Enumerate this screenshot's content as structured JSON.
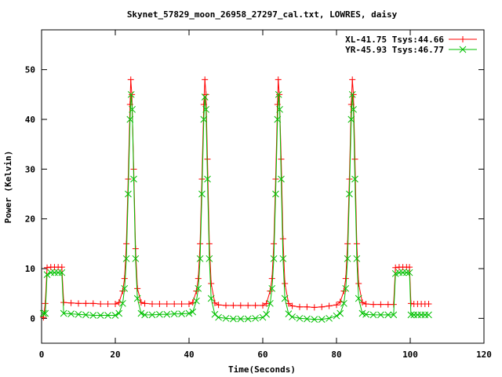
{
  "chart_data": {
    "type": "line",
    "title": "Skynet_57829_moon_26958_27297_cal.txt, LOWRES, daisy",
    "xlabel": "Time(Seconds)",
    "ylabel": "Power (Kelvin)",
    "xlim": [
      0,
      120
    ],
    "ylim": [
      -5,
      58
    ],
    "xticks": [
      0,
      20,
      40,
      60,
      80,
      100,
      120
    ],
    "yticks": [
      0,
      10,
      20,
      30,
      40,
      50
    ],
    "grid": false,
    "legend_position": "top-right",
    "series": [
      {
        "name": "XL-41.75 Tsys:44.66",
        "color": "#ff0000",
        "marker": "plus",
        "points": [
          [
            0.5,
            0.2
          ],
          [
            1.0,
            3.0
          ],
          [
            1.5,
            10.2
          ],
          [
            2.5,
            10.3
          ],
          [
            3.5,
            10.3
          ],
          [
            4.5,
            10.3
          ],
          [
            5.5,
            10.3
          ],
          [
            6.0,
            3.2
          ],
          [
            8,
            3.1
          ],
          [
            10,
            3.0
          ],
          [
            12,
            3.0
          ],
          [
            14,
            3.0
          ],
          [
            16,
            2.9
          ],
          [
            18,
            2.9
          ],
          [
            20,
            2.9
          ],
          [
            21,
            3.2
          ],
          [
            22,
            5.5
          ],
          [
            22.5,
            8
          ],
          [
            23,
            15
          ],
          [
            23.5,
            28
          ],
          [
            24,
            43
          ],
          [
            24.2,
            48
          ],
          [
            24.5,
            45
          ],
          [
            25,
            30
          ],
          [
            25.5,
            14
          ],
          [
            26,
            6
          ],
          [
            27,
            3.2
          ],
          [
            28,
            3.0
          ],
          [
            30,
            2.9
          ],
          [
            32,
            2.9
          ],
          [
            34,
            2.9
          ],
          [
            36,
            2.9
          ],
          [
            38,
            2.9
          ],
          [
            40,
            2.9
          ],
          [
            41,
            3.2
          ],
          [
            42,
            5.5
          ],
          [
            42.5,
            8
          ],
          [
            43,
            15
          ],
          [
            43.5,
            28
          ],
          [
            44,
            43
          ],
          [
            44.3,
            48
          ],
          [
            44.6,
            45
          ],
          [
            45,
            32
          ],
          [
            45.5,
            15
          ],
          [
            46,
            7
          ],
          [
            47,
            3.1
          ],
          [
            48,
            2.7
          ],
          [
            50,
            2.6
          ],
          [
            52,
            2.6
          ],
          [
            54,
            2.6
          ],
          [
            56,
            2.6
          ],
          [
            58,
            2.6
          ],
          [
            60,
            2.6
          ],
          [
            61,
            3.0
          ],
          [
            62,
            5.5
          ],
          [
            62.5,
            8
          ],
          [
            63,
            15
          ],
          [
            63.5,
            28
          ],
          [
            64,
            43
          ],
          [
            64.2,
            48
          ],
          [
            64.5,
            45
          ],
          [
            65,
            32
          ],
          [
            65.5,
            16
          ],
          [
            66,
            7
          ],
          [
            67,
            3.0
          ],
          [
            68,
            2.5
          ],
          [
            70,
            2.3
          ],
          [
            72,
            2.3
          ],
          [
            74,
            2.2
          ],
          [
            76,
            2.3
          ],
          [
            78,
            2.5
          ],
          [
            80,
            2.7
          ],
          [
            81,
            3.3
          ],
          [
            82,
            5.5
          ],
          [
            82.5,
            8
          ],
          [
            83,
            15
          ],
          [
            83.5,
            28
          ],
          [
            84,
            43
          ],
          [
            84.3,
            48
          ],
          [
            84.6,
            45
          ],
          [
            85,
            32
          ],
          [
            85.5,
            15
          ],
          [
            86,
            7
          ],
          [
            87,
            3.2
          ],
          [
            88,
            2.9
          ],
          [
            90,
            2.8
          ],
          [
            92,
            2.8
          ],
          [
            94,
            2.8
          ],
          [
            95.5,
            2.8
          ],
          [
            96,
            10.2
          ],
          [
            97,
            10.3
          ],
          [
            98,
            10.3
          ],
          [
            99,
            10.3
          ],
          [
            99.8,
            10.3
          ],
          [
            100.2,
            3.0
          ],
          [
            101,
            2.9
          ],
          [
            102,
            2.9
          ],
          [
            103,
            2.9
          ],
          [
            104,
            2.9
          ],
          [
            105,
            2.9
          ]
        ]
      },
      {
        "name": "YR-45.93 Tsys:46.77",
        "color": "#00c000",
        "marker": "cross",
        "points": [
          [
            0.5,
            1.0
          ],
          [
            1.0,
            1.0
          ],
          [
            1.5,
            8.8
          ],
          [
            2.5,
            9.2
          ],
          [
            3.5,
            9.2
          ],
          [
            4.5,
            9.2
          ],
          [
            5.5,
            9.2
          ],
          [
            6.0,
            1.0
          ],
          [
            8,
            0.9
          ],
          [
            10,
            0.8
          ],
          [
            12,
            0.7
          ],
          [
            14,
            0.6
          ],
          [
            16,
            0.6
          ],
          [
            18,
            0.6
          ],
          [
            20,
            0.6
          ],
          [
            21,
            1.0
          ],
          [
            22,
            3.0
          ],
          [
            22.5,
            6
          ],
          [
            23,
            12
          ],
          [
            23.5,
            25
          ],
          [
            24,
            40
          ],
          [
            24.3,
            45
          ],
          [
            24.6,
            42
          ],
          [
            25,
            28
          ],
          [
            25.5,
            12
          ],
          [
            26,
            4
          ],
          [
            27,
            1.0
          ],
          [
            28,
            0.7
          ],
          [
            30,
            0.7
          ],
          [
            32,
            0.8
          ],
          [
            34,
            0.8
          ],
          [
            36,
            0.9
          ],
          [
            38,
            0.9
          ],
          [
            40,
            1.0
          ],
          [
            41,
            1.3
          ],
          [
            42,
            3.5
          ],
          [
            42.5,
            6
          ],
          [
            43,
            12
          ],
          [
            43.5,
            25
          ],
          [
            44,
            40
          ],
          [
            44.3,
            44.5
          ],
          [
            44.6,
            42
          ],
          [
            45,
            28
          ],
          [
            45.5,
            12
          ],
          [
            46,
            4
          ],
          [
            47,
            0.8
          ],
          [
            48,
            0.2
          ],
          [
            50,
            0.0
          ],
          [
            52,
            -0.1
          ],
          [
            54,
            -0.1
          ],
          [
            56,
            -0.1
          ],
          [
            58,
            0.0
          ],
          [
            60,
            0.2
          ],
          [
            61,
            0.8
          ],
          [
            62,
            3.0
          ],
          [
            62.5,
            6
          ],
          [
            63,
            12
          ],
          [
            63.5,
            25
          ],
          [
            64,
            40
          ],
          [
            64.3,
            45
          ],
          [
            64.6,
            42
          ],
          [
            65,
            28
          ],
          [
            65.5,
            12
          ],
          [
            66,
            4
          ],
          [
            67,
            0.9
          ],
          [
            68,
            0.3
          ],
          [
            70,
            0.0
          ],
          [
            72,
            -0.1
          ],
          [
            74,
            -0.2
          ],
          [
            76,
            -0.2
          ],
          [
            78,
            0.0
          ],
          [
            80,
            0.5
          ],
          [
            81,
            1.0
          ],
          [
            82,
            3.0
          ],
          [
            82.5,
            6
          ],
          [
            83,
            12
          ],
          [
            83.5,
            25
          ],
          [
            84,
            40
          ],
          [
            84.3,
            45
          ],
          [
            84.6,
            42
          ],
          [
            85,
            28
          ],
          [
            85.5,
            12
          ],
          [
            86,
            4
          ],
          [
            87,
            1.0
          ],
          [
            88,
            0.8
          ],
          [
            90,
            0.7
          ],
          [
            92,
            0.7
          ],
          [
            94,
            0.7
          ],
          [
            95.5,
            0.7
          ],
          [
            96,
            9.0
          ],
          [
            97,
            9.2
          ],
          [
            98,
            9.2
          ],
          [
            99,
            9.2
          ],
          [
            99.8,
            9.2
          ],
          [
            100.2,
            0.7
          ],
          [
            101,
            0.7
          ],
          [
            102,
            0.7
          ],
          [
            103,
            0.7
          ],
          [
            104,
            0.7
          ],
          [
            105,
            0.7
          ]
        ]
      }
    ]
  }
}
